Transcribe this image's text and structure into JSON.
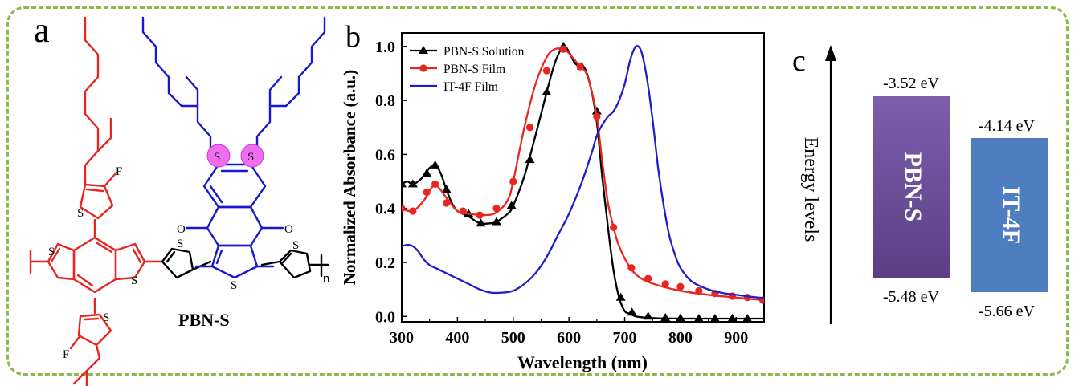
{
  "panels": {
    "a": "a",
    "b": "b",
    "c": "c"
  },
  "molecule": {
    "name": "PBN-S",
    "subscript": "n",
    "atoms": {
      "sulfur": "S",
      "fluorine": "F",
      "oxygen": "O"
    }
  },
  "colors": {
    "frame": "#8db84a",
    "side_chain_red": "#e8261f",
    "acceptor_blue": "#1717d4",
    "sulfur_highlight": "#f06cf0",
    "solution_black": "#000000",
    "film_red": "#e8261f",
    "itf_blue": "#1f1fc8",
    "pbns_box": "#6a4f96",
    "itf_box": "#4f7ec0"
  },
  "chart_data": {
    "type": "line",
    "xlabel": "Wavelength (nm)",
    "ylabel": "Normalized Absorbance (a.u.)",
    "xlim": [
      300,
      950
    ],
    "ylim": [
      -0.02,
      1.05
    ],
    "xticks": [
      "300",
      "400",
      "500",
      "600",
      "700",
      "800",
      "900"
    ],
    "yticks": [
      "0.0",
      "0.2",
      "0.4",
      "0.6",
      "0.8",
      "1.0"
    ],
    "xtick_values": [
      300,
      400,
      500,
      600,
      700,
      800,
      900
    ],
    "ytick_values": [
      0.0,
      0.2,
      0.4,
      0.6,
      0.8,
      1.0
    ],
    "legend_position": "top-left",
    "series": [
      {
        "name": "PBN-S Solution",
        "color": "#000000",
        "marker": "triangle",
        "x": [
          300,
          310,
          320,
          335,
          350,
          360,
          370,
          380,
          390,
          400,
          420,
          440,
          460,
          470,
          490,
          500,
          520,
          540,
          560,
          575,
          590,
          600,
          610,
          620,
          630,
          640,
          650,
          660,
          670,
          680,
          690,
          700,
          710,
          720,
          740,
          760,
          800,
          850,
          900,
          950
        ],
        "y": [
          0.49,
          0.5,
          0.49,
          0.51,
          0.55,
          0.56,
          0.53,
          0.47,
          0.42,
          0.39,
          0.37,
          0.345,
          0.345,
          0.35,
          0.38,
          0.41,
          0.52,
          0.67,
          0.83,
          0.94,
          1.0,
          0.98,
          0.94,
          0.925,
          0.91,
          0.84,
          0.72,
          0.51,
          0.33,
          0.17,
          0.07,
          0.02,
          0.01,
          0.0,
          -0.005,
          -0.007,
          -0.008,
          -0.008,
          -0.008,
          -0.008
        ],
        "marker_x": [
          300,
          320,
          345,
          360,
          380,
          420,
          442,
          470,
          497,
          530,
          560,
          590,
          623,
          650,
          693,
          713,
          742,
          773,
          800,
          833,
          862,
          893,
          920
        ],
        "marker_y": [
          0.49,
          0.49,
          0.53,
          0.56,
          0.47,
          0.38,
          0.345,
          0.35,
          0.41,
          0.58,
          0.83,
          1.0,
          0.925,
          0.76,
          0.07,
          0.015,
          0.0,
          -0.005,
          -0.007,
          -0.008,
          -0.008,
          -0.008,
          -0.008
        ]
      },
      {
        "name": "PBN-S Film",
        "color": "#e8261f",
        "marker": "circle",
        "x": [
          300,
          320,
          340,
          355,
          365,
          380,
          400,
          420,
          450,
          470,
          490,
          500,
          520,
          540,
          560,
          575,
          590,
          600,
          620,
          630,
          640,
          650,
          660,
          670,
          680,
          690,
          710,
          730,
          760,
          800,
          850,
          900,
          950
        ],
        "y": [
          0.4,
          0.39,
          0.43,
          0.48,
          0.48,
          0.44,
          0.39,
          0.38,
          0.375,
          0.385,
          0.43,
          0.5,
          0.7,
          0.86,
          0.96,
          0.99,
          0.99,
          0.975,
          0.925,
          0.905,
          0.84,
          0.74,
          0.57,
          0.42,
          0.33,
          0.26,
          0.18,
          0.14,
          0.115,
          0.095,
          0.08,
          0.07,
          0.06
        ],
        "marker_x": [
          300,
          320,
          345,
          360,
          380,
          410,
          440,
          470,
          500,
          530,
          560,
          590,
          620,
          650,
          680,
          712,
          742,
          773,
          800,
          833,
          862,
          893,
          920,
          948
        ],
        "marker_y": [
          0.4,
          0.39,
          0.46,
          0.49,
          0.42,
          0.39,
          0.375,
          0.4,
          0.5,
          0.7,
          0.91,
          0.99,
          0.925,
          0.74,
          0.33,
          0.18,
          0.14,
          0.12,
          0.11,
          0.095,
          0.085,
          0.075,
          0.07,
          0.06
        ]
      },
      {
        "name": "IT-4F Film",
        "color": "#1f1fc8",
        "marker": "none",
        "x": [
          300,
          310,
          320,
          330,
          340,
          350,
          360,
          380,
          400,
          420,
          440,
          460,
          480,
          500,
          520,
          540,
          560,
          580,
          600,
          620,
          640,
          650,
          660,
          670,
          680,
          690,
          700,
          710,
          720,
          730,
          740,
          750,
          760,
          770,
          780,
          790,
          800,
          820,
          850,
          880,
          900,
          930,
          950
        ],
        "y": [
          0.26,
          0.265,
          0.26,
          0.24,
          0.21,
          0.19,
          0.18,
          0.16,
          0.14,
          0.12,
          0.1,
          0.088,
          0.088,
          0.095,
          0.12,
          0.16,
          0.22,
          0.3,
          0.38,
          0.48,
          0.6,
          0.67,
          0.71,
          0.74,
          0.76,
          0.8,
          0.86,
          0.95,
          1.0,
          0.98,
          0.88,
          0.73,
          0.55,
          0.41,
          0.3,
          0.23,
          0.18,
          0.13,
          0.1,
          0.085,
          0.08,
          0.072,
          0.068
        ]
      }
    ]
  },
  "energy": {
    "ylabel": "Energy levels",
    "pbns": {
      "label": "PBN-S",
      "lumo": "-3.52 eV",
      "homo": "-5.48 eV"
    },
    "itf": {
      "label": "IT-4F",
      "lumo": "-4.14 eV",
      "homo": "-5.66 eV"
    }
  }
}
